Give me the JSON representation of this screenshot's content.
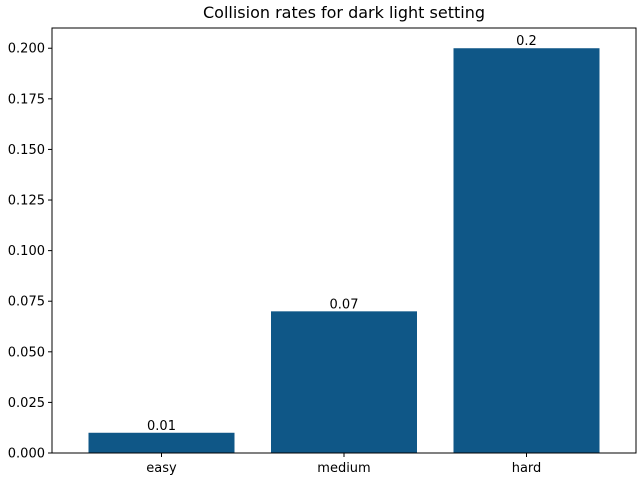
{
  "chart_data": {
    "type": "bar",
    "title": "Collision rates for dark light setting",
    "categories": [
      "easy",
      "medium",
      "hard"
    ],
    "values": [
      0.01,
      0.07,
      0.2
    ],
    "data_labels": [
      "0.01",
      "0.07",
      "0.2"
    ],
    "xlabel": "",
    "ylabel": "",
    "ylim": [
      0,
      0.21
    ],
    "yticks": [
      0,
      0.025,
      0.05,
      0.075,
      0.1,
      0.125,
      0.15,
      0.175,
      0.2
    ],
    "ytick_labels": [
      "0.000",
      "0.025",
      "0.050",
      "0.075",
      "0.100",
      "0.125",
      "0.150",
      "0.175",
      "0.200"
    ],
    "bar_color": "#0f5787",
    "grid": false,
    "legend": "none"
  }
}
